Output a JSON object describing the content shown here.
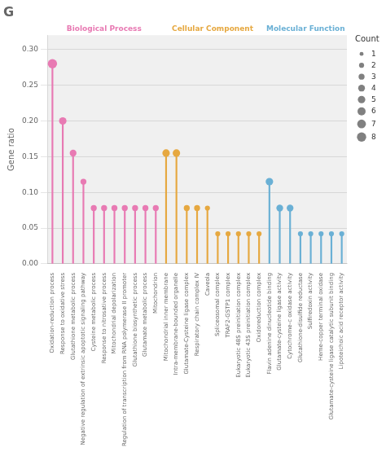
{
  "chart_data": {
    "type": "lollipop",
    "title": "G",
    "ylabel": "Gene ratio",
    "groups": [
      {
        "name": "Biological Process",
        "color": "#e87ab3",
        "categories": [
          "Oxidation-reduction process",
          "Response to oxidative stress",
          "Glutathione metabolic process",
          "Negative regulation of extrinsic apoptotic signaling pathway",
          "Cysteine metabolic process",
          "Response to nitrosative process",
          "Mitochondrial depolarization",
          "Regulation of transcription from RNA polymerase II promoter",
          "Glutathione biosynthetic process",
          "Glutamate metabolic process",
          "Mitochondrion"
        ],
        "values": [
          0.28,
          0.2,
          0.155,
          0.115,
          0.078,
          0.078,
          0.078,
          0.078,
          0.078,
          0.078,
          0.078
        ],
        "count": [
          8,
          5,
          4,
          3,
          3,
          3,
          3,
          3,
          3,
          3,
          3
        ]
      },
      {
        "name": "Cellular Component",
        "color": "#e6a840",
        "categories": [
          "Mitochondrial inner membrane",
          "Intra-membrane-bounded organelle",
          "Glutamate-Cysteine ligase complex",
          "Respiratory chain complex IV",
          "Caveola",
          "Spliceosomal complex",
          "TRAF2-GSTP1 complex",
          "Eukaryotic 48S preinitiation complex",
          "Eukaryotic 43S preinitiation complex",
          "Oxidoreduction complex"
        ],
        "values": [
          0.155,
          0.155,
          0.078,
          0.078,
          0.078,
          0.042,
          0.042,
          0.042,
          0.042,
          0.042
        ],
        "count": [
          5,
          5,
          3,
          3,
          2,
          2,
          2,
          2,
          2,
          2
        ]
      },
      {
        "name": "Molecular Function",
        "color": "#6ab0d5",
        "categories": [
          "Flavin adenine dinucleotide binding",
          "Glutamate-cysteine ligase activity",
          "Cytochrome-c oxidase activity",
          "Glutathione-disulfide reductase",
          "Sulfiredoxin activity",
          "Heme-copper terminal oxidase",
          "Glutamate-cysteine ligase catalytic subunit binding",
          "Lipoteichoic acid receptor activity"
        ],
        "values": [
          0.115,
          0.078,
          0.078,
          0.042,
          0.042,
          0.042,
          0.042,
          0.042
        ],
        "count": [
          5,
          4,
          4,
          2,
          2,
          2,
          2,
          2
        ]
      }
    ],
    "ylim": [
      0.0,
      0.32
    ],
    "yticks": [
      {
        "value": 0,
        "label": "0.00"
      },
      {
        "value": 0.05,
        "label": "0.05"
      },
      {
        "value": 0.1,
        "label": "0.10"
      },
      {
        "value": 0.15,
        "label": "0.15"
      },
      {
        "value": 0.2,
        "label": "0.20"
      },
      {
        "value": 0.25,
        "label": "0.25"
      },
      {
        "value": 0.3,
        "label": "0.30"
      }
    ],
    "grid": true,
    "size_legend": {
      "title": "Count",
      "values": [
        1,
        2,
        3,
        4,
        5,
        6,
        7,
        8
      ]
    }
  }
}
